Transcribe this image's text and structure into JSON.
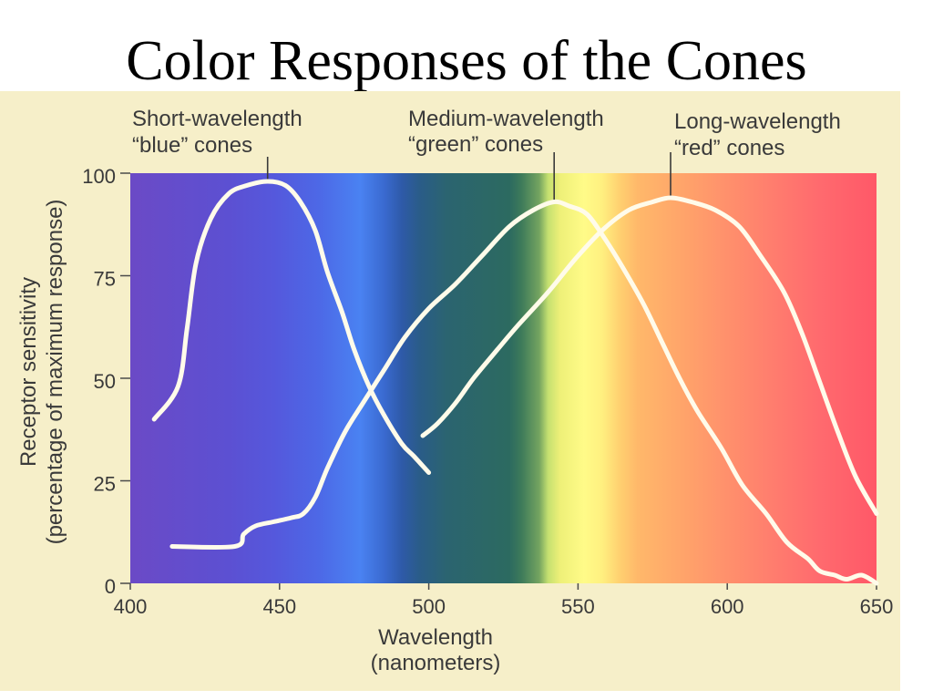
{
  "chart_data": {
    "type": "line",
    "title": "Color Responses of the Cones",
    "xlabel": [
      "Wavelength",
      "(nanometers)"
    ],
    "ylabel": [
      "Receptor sensitivity",
      "(percentage of maximum response)"
    ],
    "xlim": [
      400,
      650
    ],
    "ylim": [
      0,
      100
    ],
    "xticks": [
      400,
      450,
      500,
      550,
      600,
      650
    ],
    "yticks": [
      0,
      25,
      50,
      75,
      100
    ],
    "grid": false,
    "line_color": "#fffbea",
    "spectrum": [
      {
        "wavelength": 400,
        "color": "#6b4ac6"
      },
      {
        "wavelength": 433,
        "color": "#5c50d2"
      },
      {
        "wavelength": 448,
        "color": "#5558dc"
      },
      {
        "wavelength": 463,
        "color": "#4d68e6"
      },
      {
        "wavelength": 477,
        "color": "#4a82f2"
      },
      {
        "wavelength": 485,
        "color": "#3a6ad0"
      },
      {
        "wavelength": 491,
        "color": "#2e5aa8"
      },
      {
        "wavelength": 497,
        "color": "#2a5c88"
      },
      {
        "wavelength": 506,
        "color": "#2b6470"
      },
      {
        "wavelength": 527,
        "color": "#2c6a60"
      },
      {
        "wavelength": 531,
        "color": "#3d7a5a"
      },
      {
        "wavelength": 537,
        "color": "#74a460"
      },
      {
        "wavelength": 540,
        "color": "#c5e070"
      },
      {
        "wavelength": 544,
        "color": "#eef078"
      },
      {
        "wavelength": 552,
        "color": "#fffb88"
      },
      {
        "wavelength": 558,
        "color": "#fff080"
      },
      {
        "wavelength": 564,
        "color": "#ffd070"
      },
      {
        "wavelength": 570,
        "color": "#ffb86a"
      },
      {
        "wavelength": 585,
        "color": "#ffa46a"
      },
      {
        "wavelength": 600,
        "color": "#ff906c"
      },
      {
        "wavelength": 616,
        "color": "#ff7c6e"
      },
      {
        "wavelength": 631,
        "color": "#ff6a6e"
      },
      {
        "wavelength": 650,
        "color": "#ff5868"
      }
    ],
    "series": [
      {
        "label": [
          "Short-wavelength",
          "“blue” cones"
        ],
        "x": [
          408,
          416,
          419,
          422,
          427,
          433,
          439,
          446,
          452,
          457,
          462,
          466,
          471,
          475,
          480,
          485,
          491,
          495,
          500
        ],
        "y": [
          40,
          48,
          62,
          78,
          89,
          95,
          97,
          98,
          97,
          93,
          86,
          76,
          66,
          57,
          48,
          41,
          34,
          31,
          27
        ]
      },
      {
        "label": [
          "Medium-wavelength",
          "“green” cones"
        ],
        "x": [
          414,
          435,
          438,
          442,
          448,
          454,
          458,
          462,
          466,
          472,
          478,
          485,
          492,
          500,
          509,
          518,
          527,
          535,
          542,
          547,
          553,
          559,
          565,
          572,
          578,
          584,
          590,
          598,
          605,
          613,
          620,
          627,
          631,
          636,
          640,
          645,
          650
        ],
        "y": [
          9,
          9,
          12,
          14,
          15,
          16,
          17,
          21,
          28,
          37,
          44,
          52,
          60,
          67,
          73,
          80,
          87,
          91,
          93,
          92,
          90,
          84,
          77,
          68,
          59,
          50,
          42,
          33,
          24,
          17,
          10,
          6,
          3,
          2,
          1,
          2,
          0
        ]
      },
      {
        "label": [
          "Long-wavelength",
          "“red” cones"
        ],
        "x": [
          498,
          503,
          509,
          515,
          523,
          530,
          540,
          549,
          558,
          567,
          575,
          581,
          588,
          596,
          604,
          611,
          619,
          625,
          631,
          637,
          643,
          650
        ],
        "y": [
          36,
          39,
          44,
          50,
          57,
          63,
          71,
          79,
          86,
          91,
          93,
          94,
          93,
          91,
          87,
          80,
          71,
          61,
          49,
          37,
          26,
          17
        ]
      }
    ]
  }
}
